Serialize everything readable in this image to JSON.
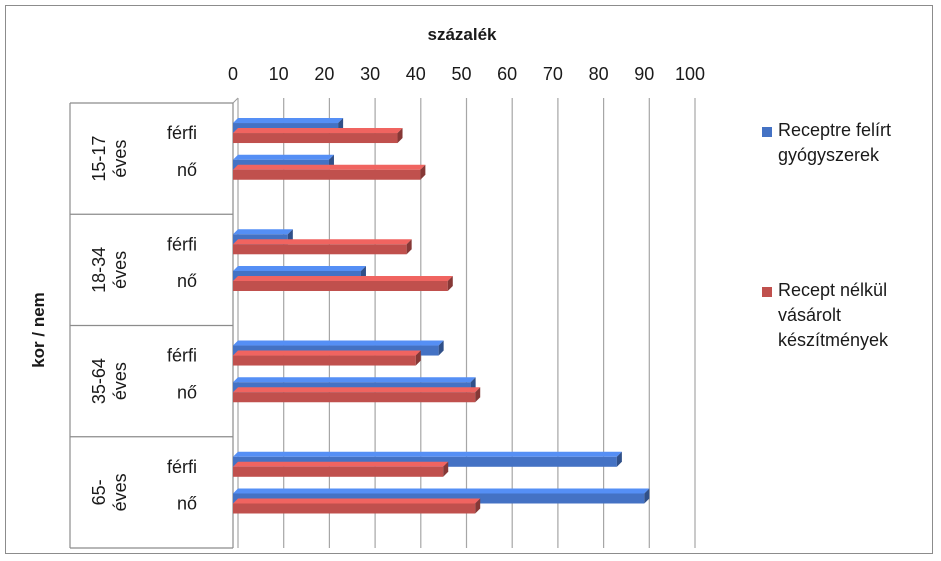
{
  "chart_data": {
    "type": "bar",
    "orientation": "horizontal",
    "title": "",
    "xlabel": "százalék",
    "ylabel": "kor / nem",
    "xlim": [
      0,
      100
    ],
    "xticks": [
      0,
      10,
      20,
      30,
      40,
      50,
      60,
      70,
      80,
      90,
      100
    ],
    "grid": true,
    "legend_position": "right",
    "groups": [
      {
        "label_lines": [
          "15-17",
          "éves"
        ],
        "rows": [
          "férfi",
          "nő"
        ]
      },
      {
        "label_lines": [
          "18-34",
          "éves"
        ],
        "rows": [
          "férfi",
          "nő"
        ]
      },
      {
        "label_lines": [
          "35-64",
          "éves"
        ],
        "rows": [
          "férfi",
          "nő"
        ]
      },
      {
        "label_lines": [
          "65-",
          "éves"
        ],
        "rows": [
          "férfi",
          "nő"
        ]
      }
    ],
    "series": [
      {
        "name": "Receptre felírt gyógyszerek",
        "legend_lines": [
          "Receptre felírt",
          "gyógyszerek"
        ],
        "color": "#4472c4",
        "values": [
          23,
          21,
          12,
          28,
          45,
          52,
          84,
          90
        ]
      },
      {
        "name": "Recept nélkül vásárolt készítmények",
        "legend_lines": [
          "Recept nélkül",
          "vásárolt",
          "készítmények"
        ],
        "color": "#c0504d",
        "values": [
          36,
          41,
          38,
          47,
          40,
          53,
          46,
          53
        ]
      }
    ]
  }
}
